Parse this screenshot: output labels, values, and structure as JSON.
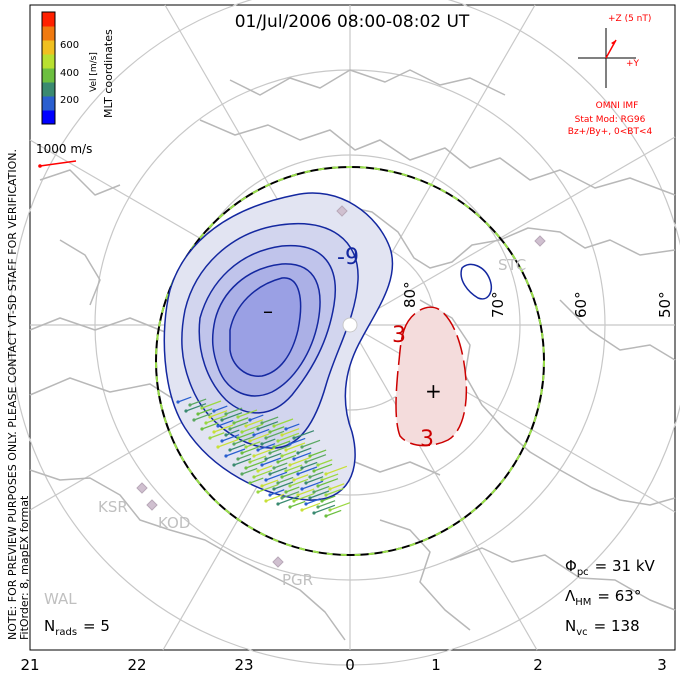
{
  "title": "01/Jul/2006 08:00-08:02 UT",
  "side_note": "NOTE: FOR PREVIEW PURPOSES ONLY. PLEASE CONTACT VT-SD STAFF FOR VERIFICATION.",
  "fit_order": "FitOrder: 8, mapEX format",
  "coordinates_label": "MLT coordinates",
  "colorbar": {
    "axis_label": "Vel [m/s]",
    "ticks": [
      "600",
      "400",
      "200"
    ],
    "colors": [
      "#0000ff",
      "#2a5fd0",
      "#3a8a70",
      "#6cbf40",
      "#b8e030",
      "#f0c020",
      "#f07a10",
      "#ff2000"
    ]
  },
  "scale_vector": {
    "label": "1000 m/s",
    "color": "#ff0000"
  },
  "imf": {
    "z_label": "+Z (5 nT)",
    "y_label": "+Y",
    "source": "OMNI IMF",
    "model": "Stat Mod: RG96",
    "condition": "Bz+/By+, 0<BT<4",
    "color": "#ff0000"
  },
  "latitude_labels": [
    "80°",
    "70°",
    "60°",
    "50°"
  ],
  "mlt_labels": [
    "21",
    "22",
    "23",
    "0",
    "1",
    "2",
    "3"
  ],
  "stations": [
    "STC",
    "KSR",
    "KOD",
    "PGR",
    "WAL"
  ],
  "contours": {
    "negative_label": "-9",
    "positive_label": "3",
    "min_marker": "–",
    "max_marker": "+",
    "negative_color": "#1428a0",
    "positive_color": "#cc0000"
  },
  "stats": {
    "phi_symbol": "Φ",
    "phi_sub": "pc",
    "phi_value": "= 31 kV",
    "lambda_symbol": "Λ",
    "lambda_sub": "HM",
    "lambda_value": "= 63°",
    "nvc_symbol": "N",
    "nvc_sub": "vc",
    "nvc_value": "= 138",
    "nrads_symbol": "N",
    "nrads_sub": "rads",
    "nrads_value": "= 5"
  }
}
